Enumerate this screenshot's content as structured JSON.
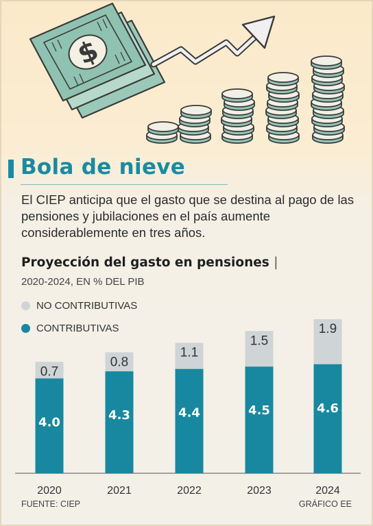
{
  "header": {
    "title": "Bola de nieve",
    "lede": "El CIEP anticipa que el gasto que se destina al pago de las pensiones y jubilaciones en el país aumente considerablemente en tres años."
  },
  "colors": {
    "accent": "#1a8aa2",
    "contributivas": "#17889f",
    "no_contributivas": "#cfd4d6"
  },
  "illustration": {
    "icons": [
      "banknote-icon",
      "dollar-sign-icon",
      "arrow-up-icon",
      "coin-stack-icon"
    ]
  },
  "chart_data": {
    "type": "bar",
    "stacked": true,
    "title": "Proyección del gasto en pensiones",
    "title_separator": "|",
    "subtitle": "2020-2024, EN % DEL PIB",
    "categories": [
      "2020",
      "2021",
      "2022",
      "2023",
      "2024"
    ],
    "series": [
      {
        "name": "CONTRIBUTIVAS",
        "values": [
          4.0,
          4.3,
          4.4,
          4.5,
          4.6
        ],
        "labels": [
          "4.0",
          "4.3",
          "4.4",
          "4.5",
          "4.6"
        ],
        "color": "#17889f"
      },
      {
        "name": "NO CONTRIBUTIVAS",
        "values": [
          0.7,
          0.8,
          1.1,
          1.5,
          1.9
        ],
        "labels": [
          "0.7",
          "0.8",
          "1.1",
          "1.5",
          "1.9"
        ],
        "color": "#cfd4d6"
      }
    ],
    "legend_order": [
      "NO CONTRIBUTIVAS",
      "CONTRIBUTIVAS"
    ],
    "legend_position": "top-left",
    "ylim": [
      0,
      6.5
    ],
    "grid": false,
    "yaxis_visible": false
  },
  "footer": {
    "source": "FUENTE: CIEP",
    "credit": "GRÁFICO EE"
  }
}
